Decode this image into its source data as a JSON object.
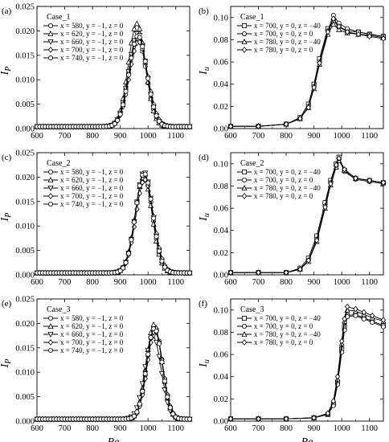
{
  "chart_data": [
    {
      "panel": "(a)",
      "case": "Case_1",
      "type": "line",
      "ylabel": "I",
      "ylabel_sub": "P",
      "xlabel": "",
      "xlim": [
        600,
        1150
      ],
      "ylim": [
        0,
        0.025
      ],
      "xticks": [
        "600",
        "700",
        "800",
        "900",
        "1000",
        "1100"
      ],
      "yticks": [
        "0.000",
        "0.005",
        "0.010",
        "0.015",
        "0.020",
        "0.025"
      ],
      "series": [
        {
          "name": "x = 580, y = −1, z = 0",
          "marker": "circle",
          "peak_x": 962,
          "peak_y": 0.0185,
          "width": 32,
          "base": 0.0004
        },
        {
          "name": "x = 620, y = −1, z = 0",
          "marker": "triangle-up",
          "peak_x": 960,
          "peak_y": 0.0215,
          "width": 31,
          "base": 0.0004
        },
        {
          "name": "x = 660, y = −1, z = 0",
          "marker": "triangle-down",
          "peak_x": 963,
          "peak_y": 0.0195,
          "width": 32,
          "base": 0.0004
        },
        {
          "name": "x = 700, y = −1, z = 0",
          "marker": "diamond",
          "peak_x": 966,
          "peak_y": 0.0178,
          "width": 33,
          "base": 0.0004
        },
        {
          "name": "x = 740, y = −1, z = 0",
          "marker": "circle",
          "peak_x": 964,
          "peak_y": 0.019,
          "width": 32,
          "base": 0.0004
        }
      ]
    },
    {
      "panel": "(b)",
      "case": "Case_1",
      "type": "line",
      "ylabel": "I",
      "ylabel_sub": "u",
      "xlabel": "",
      "xlim": [
        600,
        1150
      ],
      "ylim": [
        0,
        0.11
      ],
      "xticks": [
        "600",
        "700",
        "800",
        "900",
        "1000",
        "1100"
      ],
      "yticks": [
        "0.00",
        "0.02",
        "0.04",
        "0.06",
        "0.08",
        "0.10"
      ],
      "series": [
        {
          "name": "x = 700, y = 0, z = −40",
          "marker": "square",
          "x": [
            600,
            700,
            800,
            850,
            880,
            900,
            920,
            950,
            970,
            990,
            1020,
            1060,
            1100,
            1150
          ],
          "y": [
            0.002,
            0.002,
            0.004,
            0.01,
            0.022,
            0.04,
            0.063,
            0.09,
            0.097,
            0.092,
            0.088,
            0.087,
            0.085,
            0.083
          ]
        },
        {
          "name": "x = 700, y = 0, z = 0",
          "marker": "circle",
          "x": [
            600,
            700,
            800,
            850,
            880,
            900,
            920,
            950,
            970,
            990,
            1020,
            1060,
            1100,
            1150
          ],
          "y": [
            0.002,
            0.002,
            0.004,
            0.009,
            0.02,
            0.038,
            0.06,
            0.088,
            0.102,
            0.095,
            0.09,
            0.087,
            0.085,
            0.083
          ]
        },
        {
          "name": "x = 780, y = 0, z = −40",
          "marker": "triangle-up",
          "x": [
            600,
            700,
            800,
            850,
            880,
            900,
            920,
            950,
            970,
            990,
            1020,
            1060,
            1100,
            1150
          ],
          "y": [
            0.002,
            0.002,
            0.004,
            0.009,
            0.019,
            0.036,
            0.058,
            0.085,
            0.094,
            0.089,
            0.086,
            0.085,
            0.084,
            0.082
          ]
        },
        {
          "name": "x = 780, y = 0, z = 0",
          "marker": "diamond",
          "x": [
            600,
            700,
            800,
            850,
            880,
            900,
            920,
            950,
            970,
            990,
            1020,
            1060,
            1100,
            1150
          ],
          "y": [
            0.002,
            0.002,
            0.004,
            0.009,
            0.019,
            0.037,
            0.059,
            0.087,
            0.099,
            0.092,
            0.087,
            0.085,
            0.083,
            0.081
          ]
        }
      ]
    },
    {
      "panel": "(c)",
      "case": "Case_2",
      "type": "line",
      "ylabel": "I",
      "ylabel_sub": "P",
      "xlabel": "",
      "xlim": [
        600,
        1150
      ],
      "ylim": [
        0,
        0.025
      ],
      "xticks": [
        "600",
        "700",
        "800",
        "900",
        "1000",
        "1100"
      ],
      "yticks": [
        "0.000",
        "0.005",
        "0.010",
        "0.015",
        "0.020",
        "0.025"
      ],
      "series": [
        {
          "name": "x = 580, y = −1, z = 0",
          "marker": "circle",
          "peak_x": 985,
          "peak_y": 0.0205,
          "width": 31,
          "base": 0.0004
        },
        {
          "name": "x = 620, y = −1, z = 0",
          "marker": "triangle-up",
          "peak_x": 984,
          "peak_y": 0.02,
          "width": 31,
          "base": 0.0004
        },
        {
          "name": "x = 660, y = −1, z = 0",
          "marker": "triangle-down",
          "peak_x": 986,
          "peak_y": 0.021,
          "width": 31,
          "base": 0.0004
        },
        {
          "name": "x = 700, y = −1, z = 0",
          "marker": "diamond",
          "peak_x": 988,
          "peak_y": 0.0195,
          "width": 32,
          "base": 0.0004
        },
        {
          "name": "x = 740, y = −1, z = 0",
          "marker": "circle",
          "peak_x": 986,
          "peak_y": 0.0208,
          "width": 31,
          "base": 0.0004
        }
      ]
    },
    {
      "panel": "(d)",
      "case": "Case_2",
      "type": "line",
      "ylabel": "I",
      "ylabel_sub": "u",
      "xlabel": "",
      "xlim": [
        600,
        1150
      ],
      "ylim": [
        0,
        0.11
      ],
      "xticks": [
        "600",
        "700",
        "800",
        "900",
        "1000",
        "1100"
      ],
      "yticks": [
        "0.00",
        "0.02",
        "0.04",
        "0.06",
        "0.08",
        "0.10"
      ],
      "series": [
        {
          "name": "x = 700, y = 0, z = −40",
          "marker": "square",
          "x": [
            600,
            700,
            800,
            850,
            880,
            910,
            940,
            960,
            980,
            990,
            1010,
            1050,
            1100,
            1150
          ],
          "y": [
            0.002,
            0.002,
            0.002,
            0.006,
            0.015,
            0.035,
            0.065,
            0.085,
            0.1,
            0.106,
            0.094,
            0.087,
            0.085,
            0.083
          ]
        },
        {
          "name": "x = 700, y = 0, z = 0",
          "marker": "circle",
          "x": [
            600,
            700,
            800,
            850,
            880,
            910,
            940,
            960,
            980,
            990,
            1010,
            1050,
            1100,
            1150
          ],
          "y": [
            0.002,
            0.002,
            0.002,
            0.005,
            0.013,
            0.032,
            0.062,
            0.083,
            0.098,
            0.104,
            0.093,
            0.086,
            0.084,
            0.082
          ]
        },
        {
          "name": "x = 780, y = 0, z = −40",
          "marker": "triangle-up",
          "x": [
            600,
            700,
            800,
            850,
            880,
            910,
            940,
            960,
            980,
            990,
            1010,
            1050,
            1100,
            1150
          ],
          "y": [
            0.002,
            0.002,
            0.002,
            0.005,
            0.012,
            0.03,
            0.06,
            0.081,
            0.097,
            0.103,
            0.094,
            0.087,
            0.085,
            0.083
          ]
        },
        {
          "name": "x = 780, y = 0, z = 0",
          "marker": "diamond",
          "x": [
            600,
            700,
            800,
            850,
            880,
            910,
            940,
            960,
            980,
            990,
            1010,
            1050,
            1100,
            1150
          ],
          "y": [
            0.002,
            0.002,
            0.002,
            0.005,
            0.013,
            0.031,
            0.061,
            0.082,
            0.099,
            0.105,
            0.095,
            0.087,
            0.085,
            0.083
          ]
        }
      ]
    },
    {
      "panel": "(e)",
      "case": "Case_3",
      "type": "line",
      "ylabel": "I",
      "ylabel_sub": "P",
      "xlabel": "Re",
      "xlim": [
        600,
        1150
      ],
      "ylim": [
        0,
        0.025
      ],
      "xticks": [
        "600",
        "700",
        "800",
        "900",
        "1000",
        "1100"
      ],
      "yticks": [
        "0.000",
        "0.005",
        "0.010",
        "0.015",
        "0.020",
        "0.025"
      ],
      "series": [
        {
          "name": "x = 580, y = −1, z = 0",
          "marker": "circle",
          "peak_x": 1024,
          "peak_y": 0.0192,
          "width": 28,
          "base": 0.0004
        },
        {
          "name": "x = 620, y = −1, z = 0",
          "marker": "triangle-up",
          "peak_x": 1022,
          "peak_y": 0.0198,
          "width": 28,
          "base": 0.0004
        },
        {
          "name": "x = 660, y = −1, z = 0",
          "marker": "triangle-down",
          "peak_x": 1018,
          "peak_y": 0.0175,
          "width": 29,
          "base": 0.0004
        },
        {
          "name": "x = 700, y = −1, z = 0",
          "marker": "diamond",
          "peak_x": 1025,
          "peak_y": 0.0185,
          "width": 28,
          "base": 0.0004
        },
        {
          "name": "x = 740, y = −1, z = 0",
          "marker": "circle",
          "peak_x": 1023,
          "peak_y": 0.019,
          "width": 28,
          "base": 0.0004
        }
      ]
    },
    {
      "panel": "(f)",
      "case": "Case_3",
      "type": "line",
      "ylabel": "I",
      "ylabel_sub": "u",
      "xlabel": "Re",
      "xlim": [
        600,
        1150
      ],
      "ylim": [
        0,
        0.11
      ],
      "xticks": [
        "600",
        "700",
        "800",
        "900",
        "1000",
        "1100"
      ],
      "yticks": [
        "0.00",
        "0.02",
        "0.04",
        "0.06",
        "0.08",
        "0.10"
      ],
      "series": [
        {
          "name": "x = 700, y = 0, z = −40",
          "marker": "square",
          "x": [
            600,
            700,
            800,
            900,
            950,
            970,
            985,
            1000,
            1010,
            1020,
            1050,
            1080,
            1110,
            1150
          ],
          "y": [
            0.002,
            0.002,
            0.002,
            0.003,
            0.006,
            0.015,
            0.035,
            0.065,
            0.085,
            0.095,
            0.096,
            0.093,
            0.09,
            0.086
          ]
        },
        {
          "name": "x = 700, y = 0, z = 0",
          "marker": "circle",
          "x": [
            600,
            700,
            800,
            900,
            950,
            970,
            985,
            1000,
            1010,
            1020,
            1050,
            1080,
            1110,
            1150
          ],
          "y": [
            0.002,
            0.002,
            0.002,
            0.003,
            0.006,
            0.014,
            0.033,
            0.062,
            0.082,
            0.094,
            0.095,
            0.092,
            0.089,
            0.085
          ]
        },
        {
          "name": "x = 780, y = 0, z = −40",
          "marker": "triangle-up",
          "x": [
            600,
            700,
            800,
            900,
            950,
            970,
            985,
            1000,
            1010,
            1020,
            1050,
            1080,
            1110,
            1150
          ],
          "y": [
            0.002,
            0.002,
            0.002,
            0.003,
            0.007,
            0.017,
            0.038,
            0.07,
            0.09,
            0.1,
            0.099,
            0.096,
            0.093,
            0.09
          ]
        },
        {
          "name": "x = 780, y = 0, z = 0",
          "marker": "diamond",
          "x": [
            600,
            700,
            800,
            900,
            950,
            970,
            985,
            1000,
            1010,
            1020,
            1050,
            1080,
            1110,
            1150
          ],
          "y": [
            0.002,
            0.002,
            0.002,
            0.003,
            0.007,
            0.018,
            0.04,
            0.072,
            0.092,
            0.103,
            0.101,
            0.098,
            0.095,
            0.091
          ]
        }
      ]
    }
  ]
}
